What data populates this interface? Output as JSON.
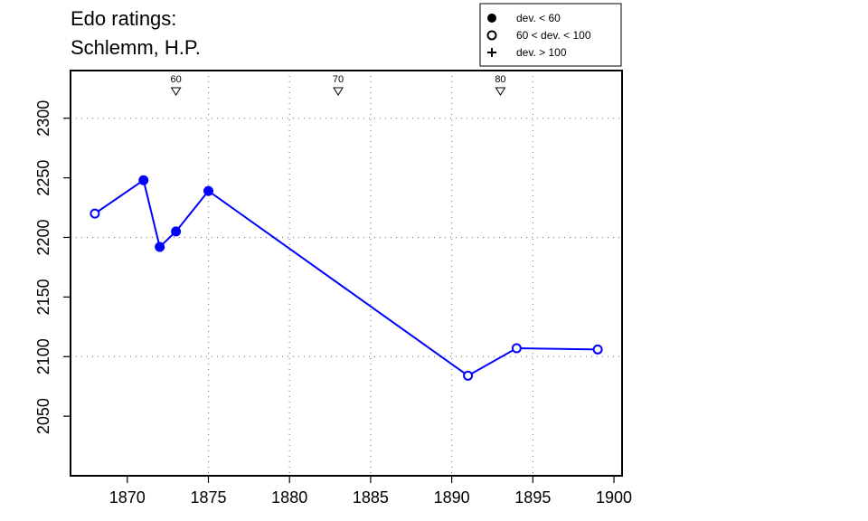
{
  "title_line1": "Edo ratings:",
  "title_line2": "Schlemm, H.P.",
  "legend": [
    {
      "symbol": "filled-circle",
      "label": "dev. < 60"
    },
    {
      "symbol": "open-circle",
      "label": "60 < dev. < 100"
    },
    {
      "symbol": "plus",
      "label": "dev. > 100"
    }
  ],
  "colors": {
    "series": "#0000ff",
    "axis": "#000000",
    "grid": "#808080"
  },
  "chart_data": {
    "type": "line",
    "title": "Edo ratings: Schlemm, H.P.",
    "xlabel": "",
    "ylabel": "",
    "xlim": [
      1866.5,
      1900.5
    ],
    "ylim": [
      2000,
      2340
    ],
    "xticks": [
      1870,
      1875,
      1880,
      1885,
      1890,
      1895,
      1900
    ],
    "yticks": [
      2050,
      2100,
      2150,
      2200,
      2250,
      2300
    ],
    "grid": true,
    "grid_x": [
      1875,
      1880,
      1885,
      1890,
      1895
    ],
    "grid_y": [
      2100,
      2200,
      2300
    ],
    "legend_position": "top-right",
    "markers": [
      {
        "year": 1873,
        "label": "60"
      },
      {
        "year": 1883,
        "label": "70"
      },
      {
        "year": 1893,
        "label": "80"
      }
    ],
    "series": [
      {
        "points": [
          {
            "x": 1868,
            "y": 2220,
            "dev": "open"
          },
          {
            "x": 1871,
            "y": 2248,
            "dev": "filled"
          },
          {
            "x": 1872,
            "y": 2192,
            "dev": "filled"
          },
          {
            "x": 1873,
            "y": 2205,
            "dev": "filled"
          },
          {
            "x": 1875,
            "y": 2239,
            "dev": "filled"
          },
          {
            "x": 1891,
            "y": 2084,
            "dev": "open"
          },
          {
            "x": 1894,
            "y": 2107,
            "dev": "open"
          },
          {
            "x": 1899,
            "y": 2106,
            "dev": "open"
          }
        ]
      }
    ]
  }
}
